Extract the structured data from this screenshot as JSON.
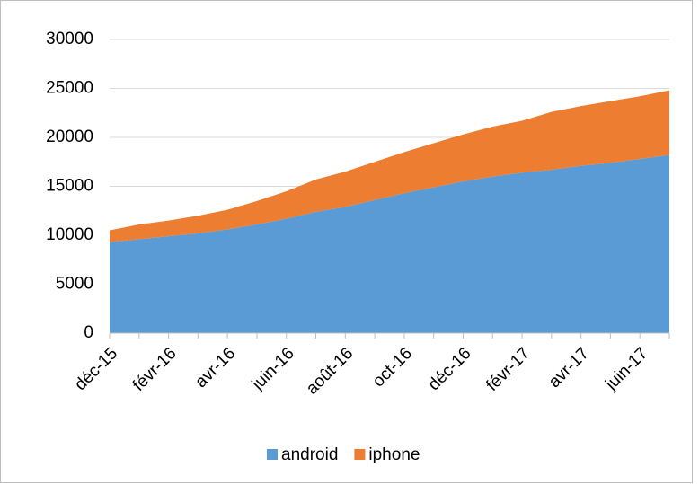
{
  "chart_data": {
    "type": "stacked_area",
    "categories": [
      "déc-15",
      null,
      "févr-16",
      null,
      "avr-16",
      null,
      "juin-16",
      null,
      "août-16",
      null,
      "oct-16",
      null,
      "déc-16",
      null,
      "févr-17",
      null,
      "avr-17",
      null,
      "juin-17",
      null
    ],
    "series": [
      {
        "name": "android",
        "color": "#5b9bd5",
        "values": [
          9300,
          9600,
          9900,
          10200,
          10600,
          11100,
          11700,
          12400,
          12900,
          13600,
          14300,
          14900,
          15500,
          16000,
          16400,
          16700,
          17100,
          17400,
          17800,
          18200
        ]
      },
      {
        "name": "iphone",
        "color": "#ed7d31",
        "values": [
          1200,
          1500,
          1600,
          1800,
          2000,
          2400,
          2800,
          3300,
          3600,
          3900,
          4200,
          4500,
          4800,
          5100,
          5300,
          5900,
          6100,
          6300,
          6400,
          6600
        ]
      }
    ],
    "ylim": [
      0,
      30000
    ],
    "yticks": [
      0,
      5000,
      10000,
      15000,
      20000,
      25000,
      30000
    ],
    "grid": true,
    "legend": "bottom"
  }
}
